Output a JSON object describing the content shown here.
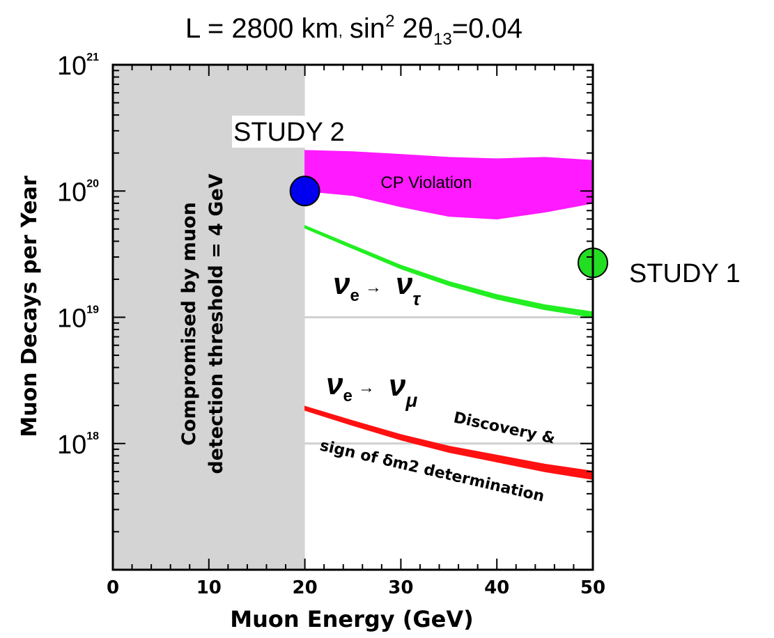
{
  "chart_data": {
    "type": "line",
    "title_main": "L = 2800 km",
    "title_sep": ",",
    "title_param": "sin",
    "title_sup": "2",
    "title_theta": " 2θ",
    "title_sub": "13",
    "title_value": "=0.04",
    "xlabel": "Muon Energy  (GeV)",
    "ylabel": "Muon Decays per Year",
    "xlim": [
      0,
      50
    ],
    "ylim": [
      1e+17,
      1e+21
    ],
    "yscale": "log",
    "xticks": [
      0,
      10,
      20,
      30,
      40,
      50
    ],
    "xtick_labels": [
      "0",
      "10",
      "20",
      "30",
      "40",
      "50"
    ],
    "ytick_base": "10",
    "yticks": [
      {
        "value": 1e+18,
        "exponent": "18"
      },
      {
        "value": 1e+19,
        "exponent": "19"
      },
      {
        "value": 1e+20,
        "exponent": "20"
      },
      {
        "value": 1e+21,
        "exponent": "21"
      }
    ],
    "grid_y": [
      1e+18,
      1e+19,
      1e+20,
      1e+21
    ],
    "shaded_region": {
      "x": [
        0,
        20
      ],
      "color": "#d4d4d4",
      "label_line1": "Compromised by muon",
      "label_line2": "detection threshold = 4 GeV"
    },
    "series": [
      {
        "name": "CP Violation",
        "kind": "band",
        "color": "#ff1aff",
        "x": [
          20,
          25,
          30,
          35,
          40,
          45,
          50
        ],
        "upper": [
          2.1e+20,
          2.05e+20,
          1.95e+20,
          1.85e+20,
          1.8e+20,
          1.85e+20,
          1.75e+20
        ],
        "lower": [
          1e+20,
          9.2e+19,
          7.5e+19,
          6.3e+19,
          6e+19,
          6.8e+19,
          8e+19
        ]
      },
      {
        "name": "ν_e → ν_τ",
        "kind": "line",
        "color": "#22ee22",
        "x": [
          20,
          25,
          30,
          35,
          40,
          45,
          50
        ],
        "y": [
          5.2e+19,
          3.6e+19,
          2.5e+19,
          1.85e+19,
          1.45e+19,
          1.2e+19,
          1.05e+19
        ]
      },
      {
        "name": "ν_e → ν_μ",
        "kind": "line",
        "color": "#ff1111",
        "x": [
          20,
          25,
          30,
          35,
          40,
          45,
          50
        ],
        "y": [
          1.9e+18,
          1.45e+18,
          1.12e+18,
          9e+17,
          7.6e+17,
          6.4e+17,
          5.6e+17
        ]
      }
    ],
    "points": [
      {
        "name": "STUDY 2",
        "x": 20,
        "y": 1e+20,
        "color": "#0000ee"
      },
      {
        "name": "STUDY 1",
        "x": 50,
        "y": 2.7e+19,
        "color": "#22dd22"
      }
    ],
    "annotations": {
      "cp": "CP Violation",
      "nu": "ν",
      "e": "e",
      "tau": "τ",
      "mu": "μ",
      "arrow": "→",
      "disc1": "Discovery &",
      "disc2": "sign of δm2 determination"
    }
  }
}
